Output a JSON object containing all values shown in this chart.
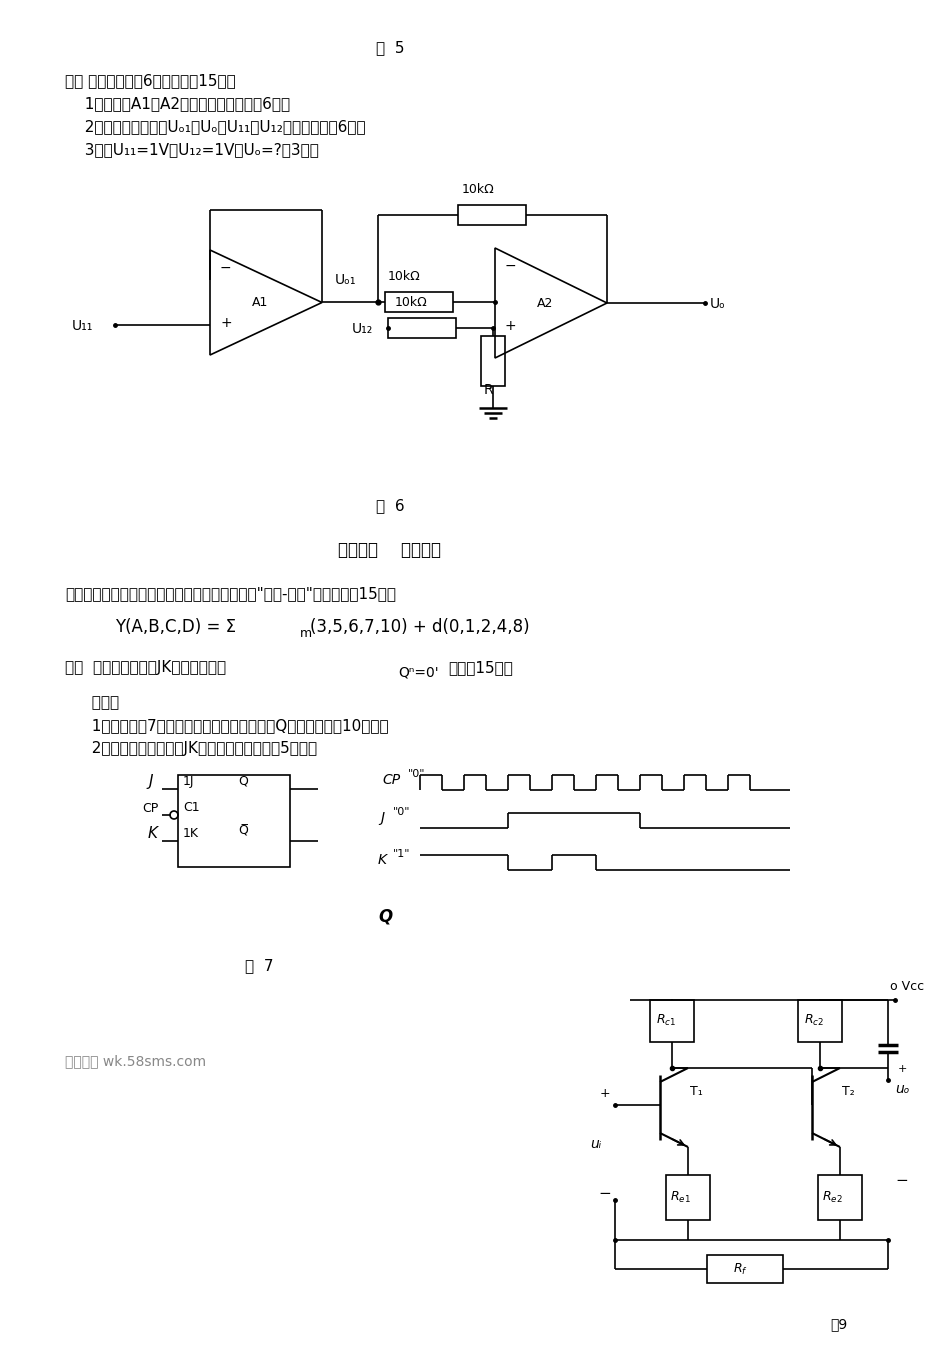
{
  "bg_color": "#ffffff",
  "text_color": "#000000",
  "fig_width": 9.5,
  "fig_height": 13.46,
  "fig5_label": "图  5",
  "fig6_label": "图  6",
  "fig7_label": "图  7",
  "fig9_label": "图9",
  "section2_title": "第二部分    数字部分",
  "watermark": "五八文库 wk.58sms.com"
}
